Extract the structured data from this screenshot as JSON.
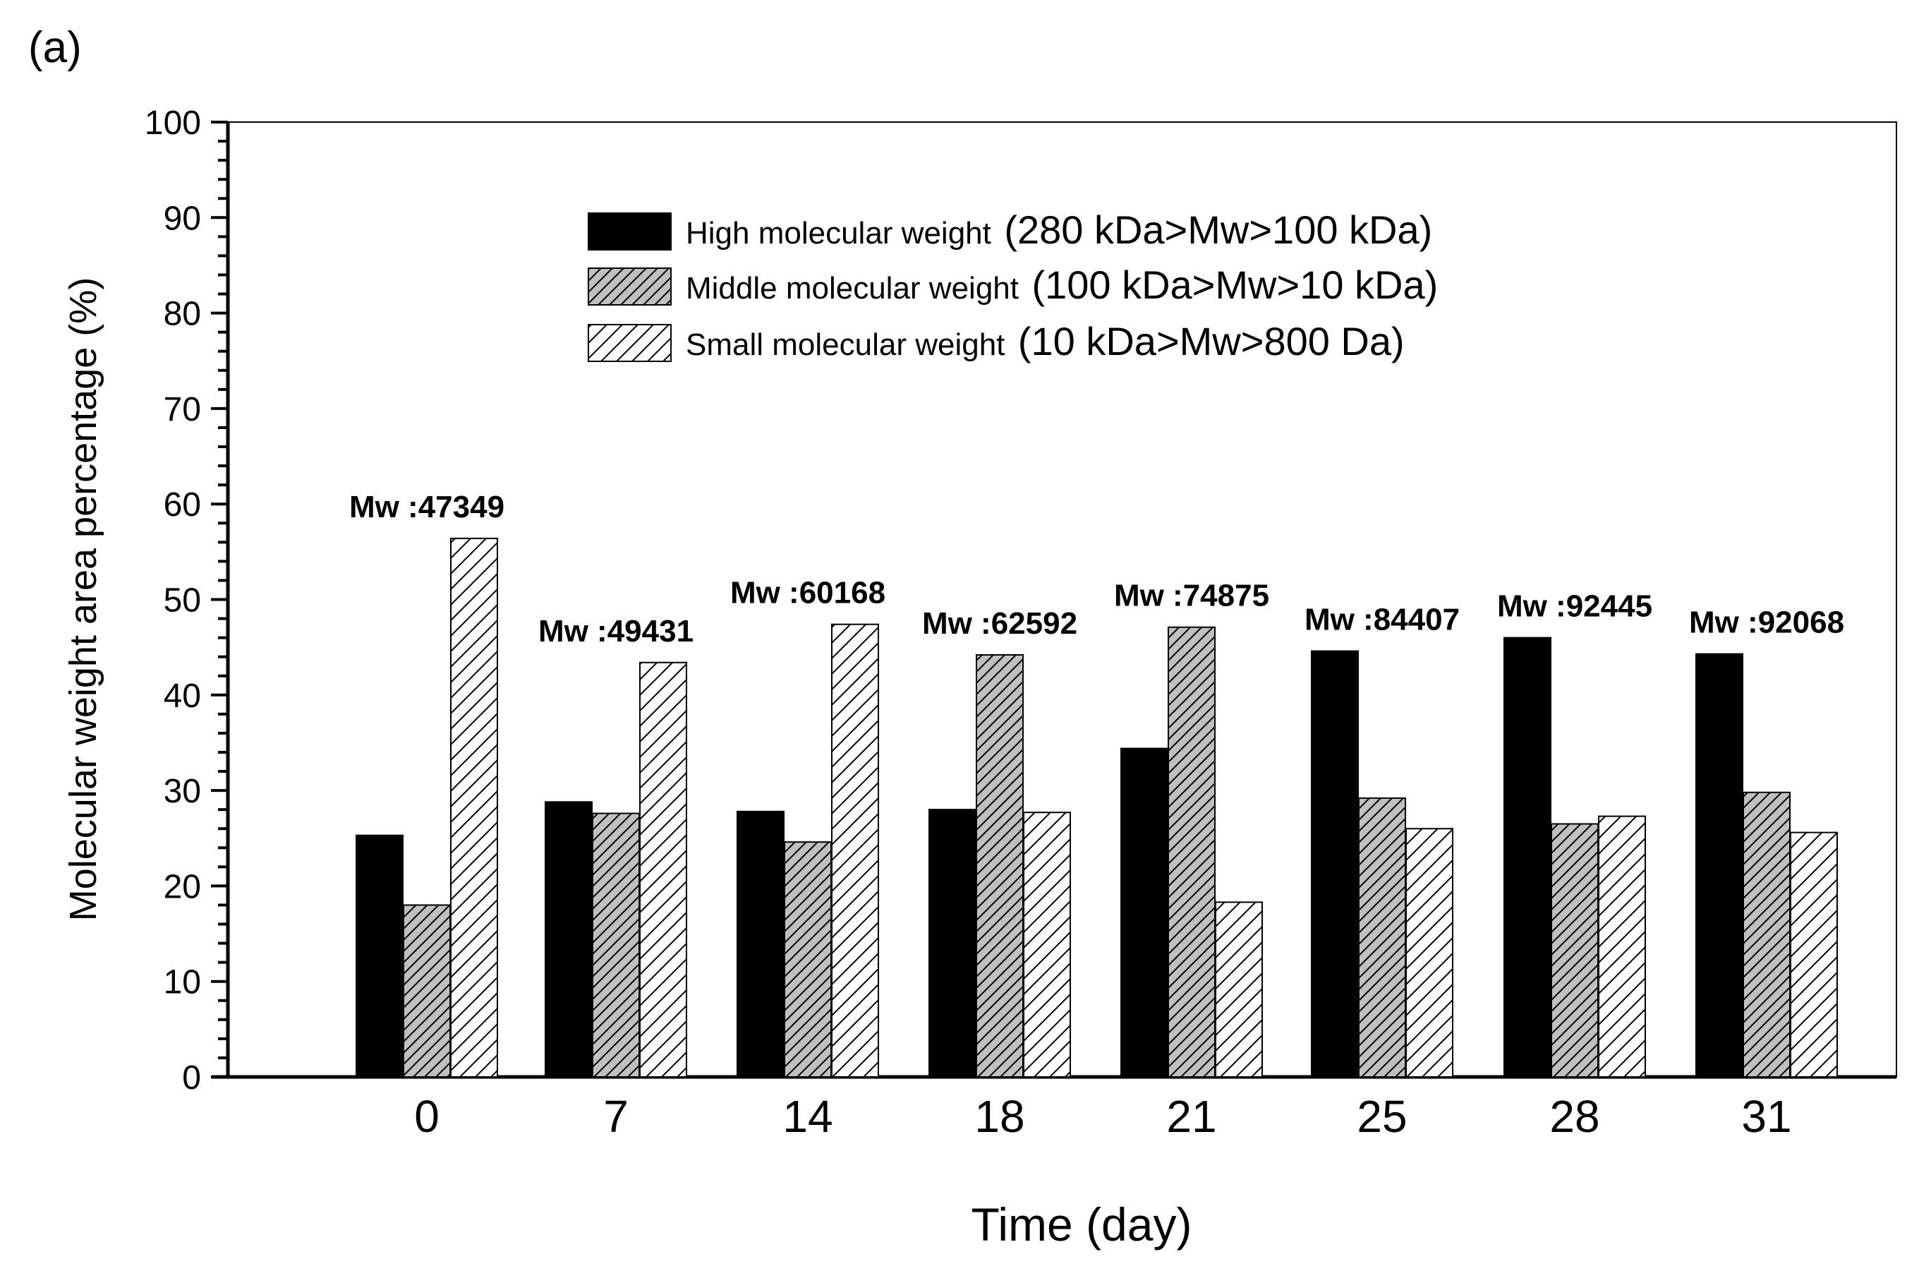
{
  "panel_label": "(a)",
  "chart_data": {
    "type": "bar",
    "xlabel": "Time (day)",
    "ylabel": "Molecular  weight  area  percentage  (%)",
    "ylim": [
      0,
      100
    ],
    "y_major_ticks": [
      0,
      10,
      20,
      30,
      40,
      50,
      60,
      70,
      80,
      90,
      100
    ],
    "y_minor_step": 2,
    "grid": false,
    "legend_position": "top-center",
    "categories": [
      "0",
      "7",
      "14",
      "18",
      "21",
      "25",
      "28",
      "31"
    ],
    "series": [
      {
        "name": "High molecular weight",
        "range_label": "(280 kDa>Mw>100 kDa)",
        "fill": "solid-black",
        "values": [
          25.3,
          28.8,
          27.8,
          28.0,
          34.4,
          44.6,
          46.0,
          44.3
        ]
      },
      {
        "name": "Middle molecular weight",
        "range_label": "(100 kDa>Mw>10 kDa)",
        "fill": "gray-hatched",
        "values": [
          18.0,
          27.6,
          24.6,
          44.2,
          47.1,
          29.2,
          26.5,
          29.8
        ]
      },
      {
        "name": "Small molecular weight",
        "range_label": "(10 kDa>Mw>800 Da)",
        "fill": "white-hatched",
        "values": [
          56.4,
          43.4,
          47.4,
          27.7,
          18.3,
          26.0,
          27.3,
          25.6
        ]
      }
    ],
    "annotations": [
      "Mw :47349",
      "Mw :49431",
      "Mw :60168",
      "Mw :62592",
      "Mw :74875",
      "Mw :84407",
      "Mw :92445",
      "Mw :92068"
    ]
  },
  "colors": {
    "high": "#000000",
    "middle": "#c0c0c0",
    "small": "#ffffff",
    "stroke": "#000000"
  }
}
